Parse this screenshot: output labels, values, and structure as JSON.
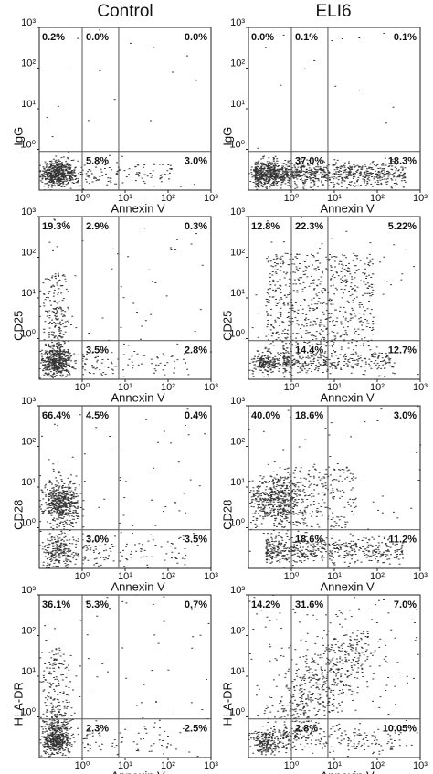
{
  "columns": [
    "Control",
    "ELI6"
  ],
  "chart_data": [
    {
      "type": "scatter",
      "ylabel": "IgG",
      "xlabel": "Annexin V",
      "log_scale": true,
      "xlim": [
        0.1,
        1000
      ],
      "ylim": [
        0.1,
        1000
      ],
      "xticks": [
        {
          "value": 1,
          "label": "10⁰"
        },
        {
          "value": 10,
          "label": "10¹"
        },
        {
          "value": 100,
          "label": "10²"
        },
        {
          "value": 1000,
          "label": "10³"
        }
      ],
      "yticks": [
        {
          "value": 1,
          "label": "10⁰"
        },
        {
          "value": 10,
          "label": "10¹"
        },
        {
          "value": 100,
          "label": "10²"
        },
        {
          "value": 1000,
          "label": "10³"
        }
      ],
      "quadrants": [
        "0.2%",
        "0.0%",
        "0.0%",
        "5.8%",
        "3.0%"
      ]
    },
    {
      "type": "scatter",
      "ylabel": "IgG",
      "xlabel": "Annexin V",
      "log_scale": true,
      "xlim": [
        0.1,
        1000
      ],
      "ylim": [
        0.1,
        1000
      ],
      "xticks": [
        {
          "value": 1,
          "label": "10⁰"
        },
        {
          "value": 10,
          "label": "10¹"
        },
        {
          "value": 100,
          "label": "10²"
        },
        {
          "value": 1000,
          "label": "10³"
        }
      ],
      "yticks": [
        {
          "value": 1,
          "label": "10⁰"
        },
        {
          "value": 10,
          "label": "10¹"
        },
        {
          "value": 100,
          "label": "10²"
        },
        {
          "value": 1000,
          "label": "10³"
        }
      ],
      "quadrants": [
        "0.0%",
        "0.1%",
        "0.1%",
        "37.0%",
        "18.3%"
      ]
    },
    {
      "type": "scatter",
      "ylabel": "CD25",
      "xlabel": "Annexin V",
      "log_scale": true,
      "xlim": [
        0.1,
        1000
      ],
      "ylim": [
        0.1,
        1000
      ],
      "xticks": [
        {
          "value": 1,
          "label": "10⁰"
        },
        {
          "value": 10,
          "label": "10¹"
        },
        {
          "value": 100,
          "label": "10²"
        },
        {
          "value": 1000,
          "label": "10³"
        }
      ],
      "yticks": [
        {
          "value": 1,
          "label": "10⁰"
        },
        {
          "value": 10,
          "label": "10¹"
        },
        {
          "value": 100,
          "label": "10²"
        },
        {
          "value": 1000,
          "label": "10³"
        }
      ],
      "quadrants": [
        "19.3%",
        "2.9%",
        "0.3%",
        "3.5%",
        "2.8%"
      ]
    },
    {
      "type": "scatter",
      "ylabel": "CD25",
      "xlabel": "Annexin V",
      "log_scale": true,
      "xlim": [
        0.1,
        1000
      ],
      "ylim": [
        0.1,
        1000
      ],
      "xticks": [
        {
          "value": 1,
          "label": "10⁰"
        },
        {
          "value": 10,
          "label": "10¹"
        },
        {
          "value": 100,
          "label": "10²"
        },
        {
          "value": 1000,
          "label": "10³"
        }
      ],
      "yticks": [
        {
          "value": 1,
          "label": "10⁰"
        },
        {
          "value": 10,
          "label": "10¹"
        },
        {
          "value": 100,
          "label": "10²"
        },
        {
          "value": 1000,
          "label": "10³"
        }
      ],
      "quadrants": [
        "12.8%",
        "22.3%",
        "5.22%",
        "14.4%",
        "12.7%"
      ]
    },
    {
      "type": "scatter",
      "ylabel": "CD28",
      "xlabel": "Annexin V",
      "log_scale": true,
      "xlim": [
        0.1,
        1000
      ],
      "ylim": [
        0.1,
        1000
      ],
      "xticks": [
        {
          "value": 1,
          "label": "10⁰"
        },
        {
          "value": 10,
          "label": "10¹"
        },
        {
          "value": 100,
          "label": "10²"
        },
        {
          "value": 1000,
          "label": "10³"
        }
      ],
      "yticks": [
        {
          "value": 1,
          "label": "10⁰"
        },
        {
          "value": 10,
          "label": "10¹"
        },
        {
          "value": 100,
          "label": "10²"
        },
        {
          "value": 1000,
          "label": "10³"
        }
      ],
      "quadrants": [
        "66.4%",
        "4.5%",
        "0.4%",
        "3.0%",
        "3.5%"
      ]
    },
    {
      "type": "scatter",
      "ylabel": "CD28",
      "xlabel": "Annexin V",
      "log_scale": true,
      "xlim": [
        0.1,
        1000
      ],
      "ylim": [
        0.1,
        1000
      ],
      "xticks": [
        {
          "value": 1,
          "label": "10⁰"
        },
        {
          "value": 10,
          "label": "10¹"
        },
        {
          "value": 100,
          "label": "10²"
        },
        {
          "value": 1000,
          "label": "10³"
        }
      ],
      "yticks": [
        {
          "value": 1,
          "label": "10⁰"
        },
        {
          "value": 10,
          "label": "10¹"
        },
        {
          "value": 100,
          "label": "10²"
        },
        {
          "value": 1000,
          "label": "10³"
        }
      ],
      "quadrants": [
        "40.0%",
        "18.6%",
        "3.0%",
        "18.6%",
        "11.2%"
      ]
    },
    {
      "type": "scatter",
      "ylabel": "HLA-DR",
      "xlabel": "Annexin V",
      "log_scale": true,
      "xlim": [
        0.1,
        1000
      ],
      "ylim": [
        0.1,
        1000
      ],
      "xticks": [
        {
          "value": 1,
          "label": "10⁰"
        },
        {
          "value": 10,
          "label": "10¹"
        },
        {
          "value": 100,
          "label": "10²"
        },
        {
          "value": 1000,
          "label": "10³"
        }
      ],
      "yticks": [
        {
          "value": 1,
          "label": "10⁰"
        },
        {
          "value": 10,
          "label": "10¹"
        },
        {
          "value": 100,
          "label": "10²"
        },
        {
          "value": 1000,
          "label": "10³"
        }
      ],
      "quadrants": [
        "36.1%",
        "5.3%",
        "0.7%",
        "2.3%",
        "2.5%"
      ]
    },
    {
      "type": "scatter",
      "ylabel": "HLA-DR",
      "xlabel": "Annexin V",
      "log_scale": true,
      "xlim": [
        0.1,
        1000
      ],
      "ylim": [
        0.1,
        1000
      ],
      "xticks": [
        {
          "value": 1,
          "label": "10⁰"
        },
        {
          "value": 10,
          "label": "10¹"
        },
        {
          "value": 100,
          "label": "10²"
        },
        {
          "value": 1000,
          "label": "10³"
        }
      ],
      "yticks": [
        {
          "value": 1,
          "label": "10⁰"
        },
        {
          "value": 10,
          "label": "10¹"
        },
        {
          "value": 100,
          "label": "10²"
        },
        {
          "value": 1000,
          "label": "10³"
        }
      ],
      "quadrants": [
        "14.2%",
        "31.6%",
        "7.0%",
        "2.8%",
        "10.05%"
      ]
    }
  ]
}
